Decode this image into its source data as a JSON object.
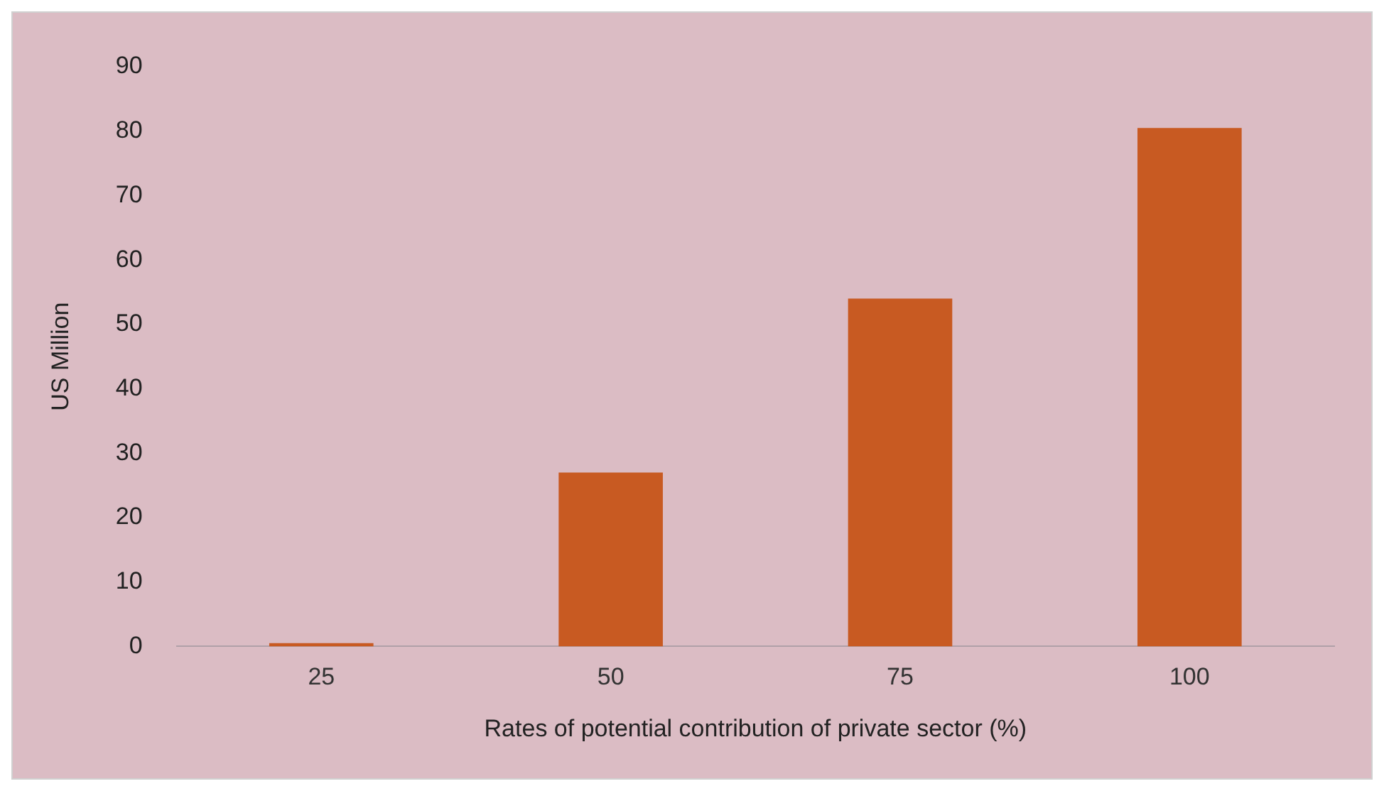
{
  "chart_data": {
    "type": "bar",
    "xlabel": "Rates of potential contribution of private sector (%)",
    "ylabel": "US Million",
    "categories": [
      "25",
      "50",
      "75",
      "100"
    ],
    "values": [
      0.5,
      27,
      54,
      80.5
    ],
    "color": "#c85a22",
    "ylim": [
      0,
      90
    ],
    "yticks": [
      0,
      10,
      20,
      30,
      40,
      50,
      60,
      70,
      80,
      90
    ],
    "grid": false,
    "legend": false
  }
}
